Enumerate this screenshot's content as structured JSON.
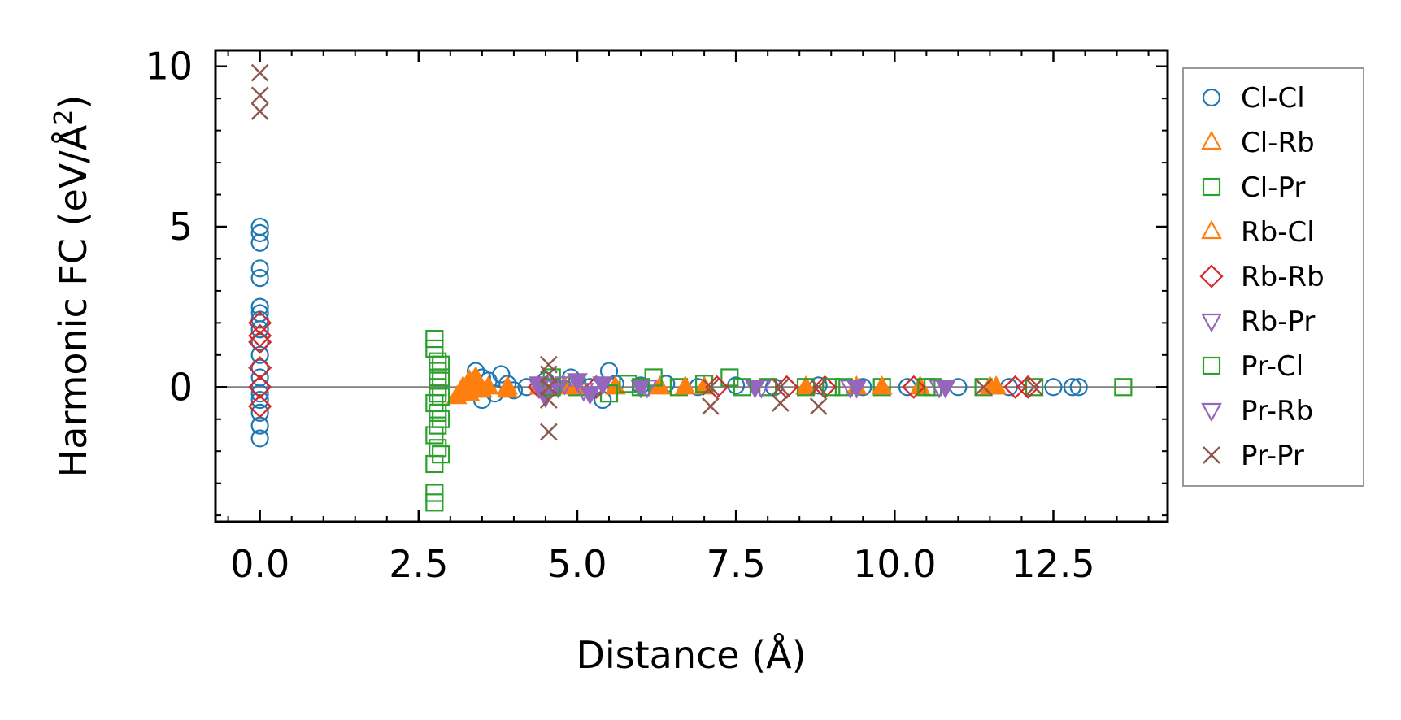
{
  "chart_data": {
    "type": "scatter",
    "xlabel": "Distance (Å)",
    "ylabel": "Harmonic FC (eV/Å",
    "ylabel_superscript": "2",
    "ylabel_close": ")",
    "xlim": [
      -0.7,
      14.3
    ],
    "ylim": [
      -4.2,
      10.5
    ],
    "xticks": [
      0.0,
      2.5,
      5.0,
      7.5,
      10.0,
      12.5
    ],
    "xtick_labels": [
      "0.0",
      "2.5",
      "5.0",
      "7.5",
      "10.0",
      "12.5"
    ],
    "yticks": [
      0,
      5,
      10
    ],
    "ytick_labels": [
      "0",
      "5",
      "10"
    ],
    "reference_line_y": 0,
    "legend_position": "right",
    "series": [
      {
        "name": "Cl-Cl",
        "marker": "circle",
        "color": "#1f77b4",
        "filled": false,
        "points": [
          [
            0,
            -1.6
          ],
          [
            0,
            -1.2
          ],
          [
            0,
            -0.8
          ],
          [
            0,
            -0.4
          ],
          [
            0,
            -0.2
          ],
          [
            0,
            0
          ],
          [
            0,
            0.3
          ],
          [
            0,
            0.6
          ],
          [
            0,
            1.0
          ],
          [
            0,
            1.4
          ],
          [
            0,
            1.8
          ],
          [
            0,
            2.1
          ],
          [
            0,
            2.3
          ],
          [
            0,
            2.5
          ],
          [
            0,
            3.4
          ],
          [
            0,
            3.7
          ],
          [
            0,
            4.5
          ],
          [
            0,
            4.8
          ],
          [
            0,
            5.0
          ],
          [
            3.4,
            0.5
          ],
          [
            3.5,
            0.3
          ],
          [
            3.5,
            -0.4
          ],
          [
            3.6,
            0.2
          ],
          [
            3.7,
            -0.2
          ],
          [
            3.8,
            0.4
          ],
          [
            3.9,
            0.1
          ],
          [
            4.0,
            -0.1
          ],
          [
            4.2,
            0.0
          ],
          [
            4.5,
            0.2
          ],
          [
            4.9,
            0.3
          ],
          [
            5.2,
            0.0
          ],
          [
            5.4,
            -0.4
          ],
          [
            5.5,
            0.5
          ],
          [
            5.6,
            0.1
          ],
          [
            6.0,
            0.05
          ],
          [
            6.4,
            0.1
          ],
          [
            6.9,
            0.0
          ],
          [
            7.5,
            0.05
          ],
          [
            8.1,
            0.0
          ],
          [
            8.8,
            0.05
          ],
          [
            9.5,
            0.0
          ],
          [
            10.2,
            0.0
          ],
          [
            11.0,
            0.0
          ],
          [
            11.8,
            0.0
          ],
          [
            12.5,
            0.0
          ],
          [
            12.8,
            0.0
          ],
          [
            12.9,
            0.0
          ]
        ]
      },
      {
        "name": "Cl-Rb",
        "marker": "triangle-up",
        "color": "#ff7f0e",
        "filled": true,
        "points": [
          [
            3.1,
            -0.3
          ],
          [
            3.2,
            0.0
          ],
          [
            3.3,
            0.2
          ],
          [
            3.3,
            -0.2
          ],
          [
            3.4,
            0.1
          ],
          [
            3.5,
            -0.1
          ],
          [
            3.6,
            0.0
          ],
          [
            3.9,
            0.0
          ],
          [
            4.4,
            0.0
          ],
          [
            5.0,
            0.0
          ],
          [
            5.6,
            0.0
          ],
          [
            6.3,
            0.0
          ],
          [
            7.0,
            0.0
          ],
          [
            8.6,
            0.0
          ],
          [
            9.4,
            0.0
          ],
          [
            10.4,
            0.0
          ],
          [
            11.6,
            0.0
          ]
        ]
      },
      {
        "name": "Cl-Pr",
        "marker": "square",
        "color": "#2ca02c",
        "filled": false,
        "points": [
          [
            2.75,
            1.5
          ],
          [
            2.75,
            1.2
          ],
          [
            2.75,
            -0.5
          ],
          [
            2.75,
            -1.5
          ],
          [
            2.75,
            -2.4
          ],
          [
            2.75,
            -3.3
          ],
          [
            2.75,
            -3.6
          ],
          [
            2.8,
            0.8
          ],
          [
            2.8,
            0.5
          ],
          [
            2.8,
            0.2
          ],
          [
            2.8,
            -0.2
          ],
          [
            2.8,
            -0.8
          ],
          [
            2.8,
            -1.2
          ],
          [
            2.8,
            -1.9
          ],
          [
            2.85,
            0.7
          ],
          [
            2.85,
            0.3
          ],
          [
            2.85,
            -0.3
          ],
          [
            2.85,
            -1.0
          ],
          [
            2.85,
            -2.1
          ],
          [
            4.6,
            0.3
          ],
          [
            5.0,
            0.0
          ],
          [
            5.5,
            -0.2
          ],
          [
            5.8,
            0.1
          ],
          [
            6.2,
            0.3
          ],
          [
            6.6,
            0.0
          ],
          [
            7.0,
            0.1
          ],
          [
            7.4,
            0.3
          ],
          [
            8.0,
            0.0
          ],
          [
            8.6,
            0.0
          ],
          [
            9.2,
            0.0
          ],
          [
            9.8,
            0.0
          ],
          [
            10.6,
            0.0
          ],
          [
            11.4,
            0.0
          ],
          [
            12.2,
            0.0
          ],
          [
            13.6,
            0.0
          ]
        ]
      },
      {
        "name": "Rb-Cl",
        "marker": "triangle-up",
        "color": "#ff7f0e",
        "filled": true,
        "points": [
          [
            3.2,
            -0.2
          ],
          [
            3.4,
            0.3
          ],
          [
            3.9,
            -0.1
          ],
          [
            4.8,
            0.0
          ],
          [
            6.7,
            0.0
          ],
          [
            9.8,
            0.0
          ],
          [
            11.5,
            0.0
          ]
        ]
      },
      {
        "name": "Rb-Rb",
        "marker": "diamond",
        "color": "#d62728",
        "filled": false,
        "points": [
          [
            0,
            2.0
          ],
          [
            0,
            1.6
          ],
          [
            0,
            1.4
          ],
          [
            0,
            0.6
          ],
          [
            0,
            0.0
          ],
          [
            0,
            -0.6
          ],
          [
            4.4,
            0.0
          ],
          [
            5.3,
            0.0
          ],
          [
            7.2,
            0.0
          ],
          [
            8.3,
            0.0
          ],
          [
            8.9,
            0.0
          ],
          [
            10.3,
            0.0
          ],
          [
            11.9,
            0.0
          ],
          [
            12.1,
            0.0
          ]
        ]
      },
      {
        "name": "Rb-Pr",
        "marker": "triangle-down",
        "color": "#9467bd",
        "filled": true,
        "points": [
          [
            4.4,
            0.1
          ],
          [
            4.5,
            -0.3
          ],
          [
            4.7,
            0.0
          ],
          [
            5.0,
            0.2
          ],
          [
            5.2,
            -0.2
          ],
          [
            5.4,
            0.1
          ],
          [
            6.0,
            0.0
          ],
          [
            7.8,
            0.0
          ],
          [
            9.4,
            0.0
          ],
          [
            10.8,
            0.0
          ]
        ]
      },
      {
        "name": "Pr-Cl",
        "marker": "square",
        "color": "#2ca02c",
        "filled": false,
        "points": [
          [
            2.8,
            0.0
          ],
          [
            4.6,
            0.0
          ],
          [
            6.0,
            0.0
          ],
          [
            7.6,
            0.0
          ],
          [
            9.0,
            0.0
          ],
          [
            10.5,
            0.0
          ]
        ]
      },
      {
        "name": "Pr-Rb",
        "marker": "triangle-down",
        "color": "#9467bd",
        "filled": false,
        "points": [
          [
            4.4,
            0.0
          ],
          [
            4.8,
            0.1
          ],
          [
            5.1,
            -0.1
          ],
          [
            6.1,
            0.0
          ],
          [
            7.9,
            0.0
          ],
          [
            9.3,
            0.0
          ],
          [
            10.7,
            0.0
          ]
        ]
      },
      {
        "name": "Pr-Pr",
        "marker": "x",
        "color": "#8c564b",
        "filled": false,
        "points": [
          [
            0,
            9.8
          ],
          [
            0,
            9.1
          ],
          [
            0,
            8.6
          ],
          [
            4.55,
            0.7
          ],
          [
            4.55,
            0.4
          ],
          [
            4.55,
            0.0
          ],
          [
            4.55,
            -0.4
          ],
          [
            4.55,
            -1.4
          ],
          [
            7.1,
            0.0
          ],
          [
            7.1,
            -0.6
          ],
          [
            8.2,
            0.0
          ],
          [
            8.2,
            -0.5
          ],
          [
            8.8,
            0.0
          ],
          [
            8.8,
            -0.6
          ],
          [
            11.4,
            0.0
          ],
          [
            12.2,
            0.0
          ]
        ]
      }
    ]
  }
}
